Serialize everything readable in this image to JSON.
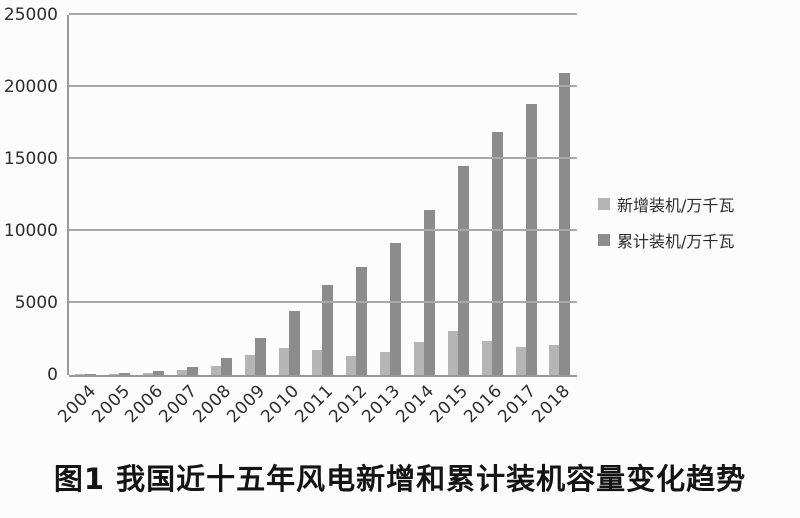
{
  "figure": {
    "caption": "图1  我国近十五年风电新增和累计装机容量变化趋势"
  },
  "chart_data": {
    "type": "bar",
    "categories": [
      "2004",
      "2005",
      "2006",
      "2007",
      "2008",
      "2009",
      "2010",
      "2011",
      "2012",
      "2013",
      "2014",
      "2015",
      "2016",
      "2017",
      "2018"
    ],
    "series": [
      {
        "name": "新增装机/万千瓦",
        "color": "#b5b5b5",
        "values": [
          20,
          50,
          133,
          330,
          620,
          1380,
          1890,
          1760,
          1300,
          1610,
          2320,
          3075,
          2340,
          1970,
          2100
        ]
      },
      {
        "name": "累计装机/万千瓦",
        "color": "#8c8c8c",
        "values": [
          76,
          127,
          260,
          590,
          1215,
          2580,
          4470,
          6240,
          7530,
          9140,
          11460,
          14540,
          16870,
          18840,
          21000
        ]
      }
    ],
    "title": "图1  我国近十五年风电新增和累计装机容量变化趋势",
    "xlabel": "",
    "ylabel": "",
    "ylim": [
      0,
      25000
    ],
    "y_ticks": [
      "0",
      "5000",
      "10000",
      "15000",
      "20000",
      "25000"
    ],
    "grid": true,
    "legend_position": "right"
  },
  "colors": {
    "bar_new": "#b5b5b5",
    "bar_cumulative": "#8c8c8c",
    "gridline": "#a9a9a9",
    "axis": "#9b9b9b",
    "tick_text": "#2d2d2d",
    "caption_text": "#141414",
    "background": "#fcfcfc"
  }
}
